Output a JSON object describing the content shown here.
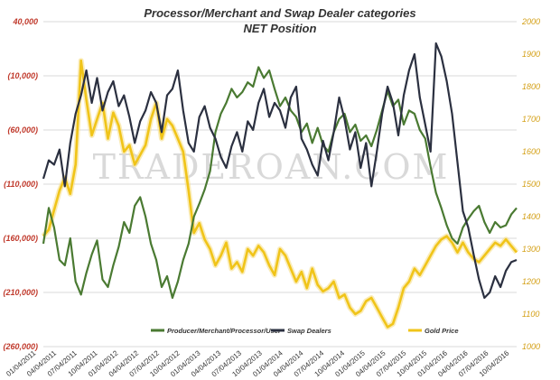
{
  "chart_data": {
    "type": "line",
    "title": "Processor/Merchant  and Swap Dealer categories",
    "subtitle": "NET Position",
    "watermark": "TRADEROAN.COM",
    "left_axis": {
      "ylim": [
        -260000,
        40000
      ],
      "ticks": [
        40000,
        -10000,
        -60000,
        -110000,
        -160000,
        -210000,
        -260000
      ],
      "tick_labels": [
        "40,000",
        "(10,000)",
        "(60,000)",
        "(110,000)",
        "(160,000)",
        "(210,000)",
        "(260,000)"
      ],
      "color": "#c0392b"
    },
    "right_axis": {
      "ylim": [
        1000,
        2000
      ],
      "ticks": [
        2000,
        1900,
        1800,
        1700,
        1600,
        1500,
        1400,
        1300,
        1200,
        1100,
        1000
      ],
      "tick_labels": [
        "2000",
        "1900",
        "1800",
        "1700",
        "1600",
        "1500",
        "1400",
        "1300",
        "1200",
        "1100",
        "1000"
      ],
      "color": "#d4a017"
    },
    "x_axis": {
      "range": [
        0,
        22
      ],
      "tick_labels": [
        "01/04/2011",
        "04/04/2011",
        "07/04/2011",
        "10/04/2011",
        "01/04/2012",
        "04/04/2012",
        "07/04/2012",
        "10/04/2012",
        "01/04/2013",
        "04/04/2013",
        "07/04/2013",
        "10/04/2013",
        "01/04/2014",
        "04/04/2014",
        "07/04/2014",
        "10/04/2014",
        "01/04/2015",
        "04/04/2015",
        "07/04/2015",
        "10/04/2015",
        "01/04/2016",
        "04/04/2016",
        "07/04/2016",
        "10/04/2016"
      ]
    },
    "legend": {
      "placement": "bottom"
    },
    "series": [
      {
        "name": "Producer/Merchant/Processor/User",
        "axis": "left",
        "color": "#4a7a32",
        "x": [
          0,
          0.25,
          0.5,
          0.75,
          1,
          1.25,
          1.5,
          1.75,
          2,
          2.25,
          2.5,
          2.75,
          3,
          3.25,
          3.5,
          3.75,
          4,
          4.25,
          4.5,
          4.75,
          5,
          5.25,
          5.5,
          5.75,
          6,
          6.25,
          6.5,
          6.75,
          7,
          7.25,
          7.5,
          7.75,
          8,
          8.25,
          8.5,
          8.75,
          9,
          9.25,
          9.5,
          9.75,
          10,
          10.25,
          10.5,
          10.75,
          11,
          11.25,
          11.5,
          11.75,
          12,
          12.25,
          12.5,
          12.75,
          13,
          13.25,
          13.5,
          13.75,
          14,
          14.25,
          14.5,
          14.75,
          15,
          15.25,
          15.5,
          15.75,
          16,
          16.25,
          16.5,
          16.75,
          17,
          17.25,
          17.5,
          17.75,
          18,
          18.25,
          18.5,
          18.75,
          19,
          19.25,
          19.5,
          19.75,
          20,
          20.25,
          20.5,
          20.75,
          21,
          21.25,
          21.5,
          21.75,
          22
        ],
        "values": [
          -165000,
          -132000,
          -150000,
          -180000,
          -185000,
          -160000,
          -200000,
          -212000,
          -192000,
          -175000,
          -162000,
          -198000,
          -205000,
          -185000,
          -168000,
          -145000,
          -155000,
          -130000,
          -122000,
          -140000,
          -165000,
          -180000,
          -205000,
          -195000,
          -215000,
          -200000,
          -180000,
          -165000,
          -140000,
          -128000,
          -115000,
          -98000,
          -62000,
          -45000,
          -35000,
          -22000,
          -30000,
          -25000,
          -16000,
          -20000,
          -2000,
          -12000,
          -5000,
          -22000,
          -38000,
          -30000,
          -42000,
          -48000,
          -62000,
          -54000,
          -72000,
          -58000,
          -74000,
          -80000,
          -62000,
          -50000,
          -45000,
          -62000,
          -55000,
          -70000,
          -65000,
          -75000,
          -60000,
          -42000,
          -24000,
          -38000,
          -32000,
          -55000,
          -42000,
          -45000,
          -60000,
          -68000,
          -94000,
          -118000,
          -132000,
          -148000,
          -160000,
          -165000,
          -150000,
          -142000,
          -135000,
          -130000,
          -145000,
          -155000,
          -145000,
          -150000,
          -148000,
          -138000,
          -132000
        ],
        "values_note": "digitized approximation"
      },
      {
        "name": "Swap Dealers",
        "axis": "left",
        "color": "#2b3040",
        "x": [
          0,
          0.25,
          0.5,
          0.75,
          1,
          1.25,
          1.5,
          1.75,
          2,
          2.25,
          2.5,
          2.75,
          3,
          3.25,
          3.5,
          3.75,
          4,
          4.25,
          4.5,
          4.75,
          5,
          5.25,
          5.5,
          5.75,
          6,
          6.25,
          6.5,
          6.75,
          7,
          7.25,
          7.5,
          7.75,
          8,
          8.25,
          8.5,
          8.75,
          9,
          9.25,
          9.5,
          9.75,
          10,
          10.25,
          10.5,
          10.75,
          11,
          11.25,
          11.5,
          11.75,
          12,
          12.25,
          12.5,
          12.75,
          13,
          13.25,
          13.5,
          13.75,
          14,
          14.25,
          14.5,
          14.75,
          15,
          15.25,
          15.5,
          15.75,
          16,
          16.25,
          16.5,
          16.75,
          17,
          17.25,
          17.5,
          17.75,
          18,
          18.25,
          18.5,
          18.75,
          19,
          19.25,
          19.5,
          19.75,
          20,
          20.25,
          20.5,
          20.75,
          21,
          21.25,
          21.5,
          21.75,
          22
        ],
        "values": [
          -105000,
          -88000,
          -92000,
          -78000,
          -112000,
          -72000,
          -45000,
          -28000,
          -5000,
          -35000,
          -12000,
          -42000,
          -25000,
          -15000,
          -38000,
          -28000,
          -48000,
          -72000,
          -52000,
          -42000,
          -25000,
          -35000,
          -62000,
          -28000,
          -22000,
          -5000,
          -42000,
          -72000,
          -80000,
          -48000,
          -38000,
          -58000,
          -68000,
          -85000,
          -95000,
          -75000,
          -62000,
          -80000,
          -52000,
          -60000,
          -35000,
          -22000,
          -48000,
          -35000,
          -42000,
          -58000,
          -30000,
          -20000,
          -68000,
          -78000,
          -92000,
          -102000,
          -70000,
          -88000,
          -62000,
          -30000,
          -50000,
          -78000,
          -62000,
          -95000,
          -72000,
          -112000,
          -80000,
          -45000,
          -20000,
          -35000,
          -65000,
          -28000,
          -5000,
          10000,
          -30000,
          -55000,
          -80000,
          20000,
          8000,
          -15000,
          -45000,
          -90000,
          -135000,
          -150000,
          -175000,
          -198000,
          -215000,
          -210000,
          -195000,
          -205000,
          -190000,
          -182000,
          -180000
        ],
        "values_note": "digitized approximation"
      },
      {
        "name": "Gold Price",
        "axis": "right",
        "color": "#f0c419",
        "x": [
          0,
          0.25,
          0.5,
          0.75,
          1,
          1.25,
          1.5,
          1.75,
          2,
          2.25,
          2.5,
          2.75,
          3,
          3.25,
          3.5,
          3.75,
          4,
          4.25,
          4.5,
          4.75,
          5,
          5.25,
          5.5,
          5.75,
          6,
          6.25,
          6.5,
          6.75,
          7,
          7.25,
          7.5,
          7.75,
          8,
          8.25,
          8.5,
          8.75,
          9,
          9.25,
          9.5,
          9.75,
          10,
          10.25,
          10.5,
          10.75,
          11,
          11.25,
          11.5,
          11.75,
          12,
          12.25,
          12.5,
          12.75,
          13,
          13.25,
          13.5,
          13.75,
          14,
          14.25,
          14.5,
          14.75,
          15,
          15.25,
          15.5,
          15.75,
          16,
          16.25,
          16.5,
          16.75,
          17,
          17.25,
          17.5,
          17.75,
          18,
          18.25,
          18.5,
          18.75,
          19,
          19.25,
          19.5,
          19.75,
          20,
          20.25,
          20.5,
          20.75,
          21,
          21.25,
          21.5,
          21.75,
          22
        ],
        "values": [
          1340,
          1360,
          1420,
          1480,
          1520,
          1470,
          1560,
          1880,
          1760,
          1650,
          1700,
          1750,
          1640,
          1720,
          1680,
          1600,
          1620,
          1560,
          1590,
          1620,
          1700,
          1750,
          1640,
          1700,
          1680,
          1640,
          1600,
          1480,
          1350,
          1380,
          1330,
          1300,
          1250,
          1280,
          1320,
          1240,
          1260,
          1230,
          1300,
          1280,
          1310,
          1290,
          1250,
          1220,
          1300,
          1280,
          1240,
          1200,
          1230,
          1180,
          1240,
          1190,
          1170,
          1180,
          1200,
          1150,
          1160,
          1120,
          1100,
          1110,
          1140,
          1150,
          1120,
          1090,
          1060,
          1070,
          1120,
          1180,
          1200,
          1240,
          1220,
          1250,
          1280,
          1310,
          1330,
          1340,
          1320,
          1290,
          1320,
          1290,
          1270,
          1260,
          1280,
          1300,
          1320,
          1310,
          1330,
          1310,
          1290
        ],
        "values_note": "digitized approximation"
      }
    ]
  }
}
